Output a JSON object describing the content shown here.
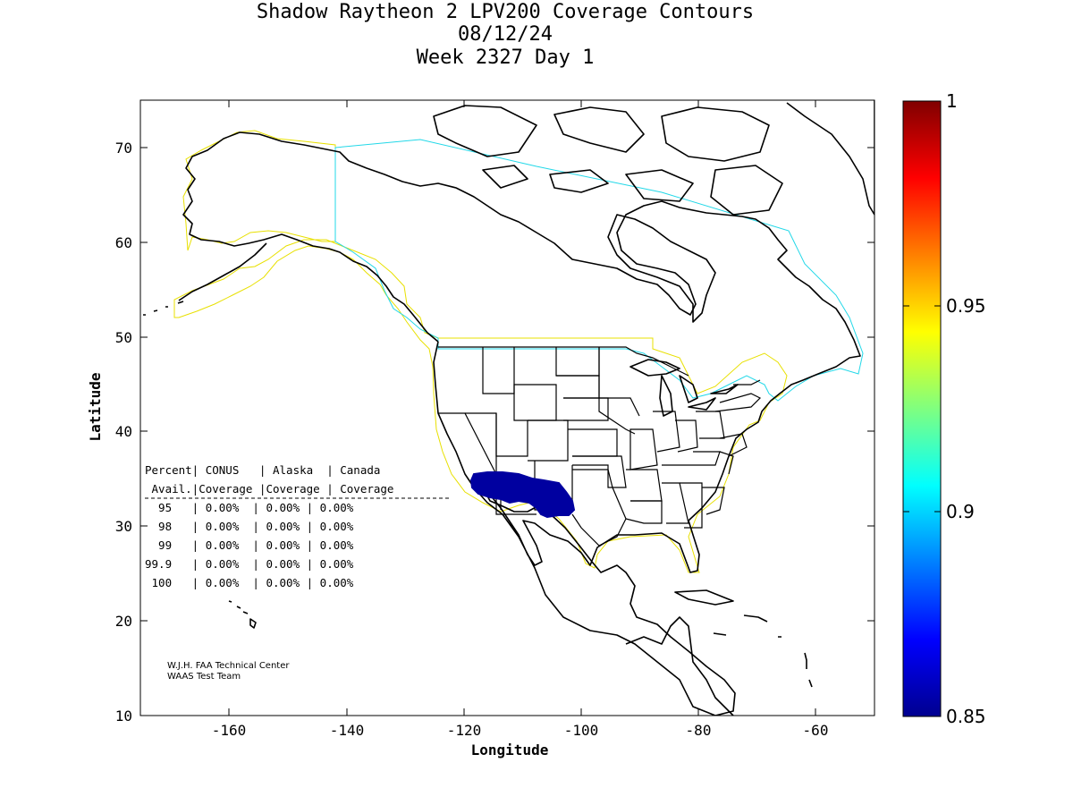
{
  "title": {
    "line1": "Shadow Raytheon 2 LPV200 Coverage Contours",
    "line2": "08/12/24",
    "line3": "Week 2327 Day 1"
  },
  "axes": {
    "xlabel": "Longitude",
    "ylabel": "Latitude",
    "xlim": [
      -175,
      -50
    ],
    "ylim": [
      10,
      75
    ],
    "x_ticks": [
      -160,
      -140,
      -120,
      -100,
      -80,
      -60
    ],
    "y_ticks": [
      10,
      20,
      30,
      40,
      50,
      60,
      70
    ]
  },
  "colorbar": {
    "min": 0.85,
    "max": 1,
    "labels": [
      "1",
      "0.95",
      "0.9",
      "0.85"
    ],
    "label_values": [
      1,
      0.95,
      0.9,
      0.85
    ],
    "colormap": "jet"
  },
  "table": {
    "header1": "Percent| CONUS   | Alaska  | Canada",
    "header2": " Avail.|Coverage |Coverage | Coverage",
    "divider": "------------------------------------------",
    "rows": [
      "  95   | 0.00%  | 0.00% | 0.00%",
      "  98   | 0.00%  | 0.00% | 0.00%",
      "  99   | 0.00%  | 0.00% | 0.00%",
      "99.9   | 0.00%  | 0.00% | 0.00%",
      " 100   | 0.00%  | 0.00% | 0.00%"
    ]
  },
  "credit": {
    "line1": "W.J.H. FAA Technical Center",
    "line2": "WAAS Test Team"
  },
  "coverage_region": {
    "value": 0.85,
    "color": "#0000a0",
    "approx_extent": {
      "lon": [
        -118,
        -101
      ],
      "lat": [
        31,
        35.5
      ]
    }
  },
  "colors": {
    "alaska_conus_boundary": "#e8e000",
    "canada_boundary": "#22d8e8",
    "coverage": "#0000a0"
  }
}
